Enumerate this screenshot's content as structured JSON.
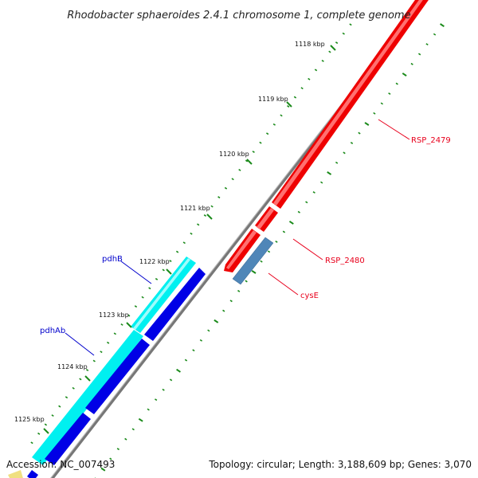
{
  "title": "Rhodobacter sphaeroides 2.4.1 chromosome 1, complete genome",
  "footer": {
    "accession": "Accession: NC_007493",
    "summary": "Topology: circular; Length: 3,188,609 bp; Genes: 3,070"
  },
  "ticks": [
    {
      "label": "1118 kbp"
    },
    {
      "label": "1119 kbp"
    },
    {
      "label": "1120 kbp"
    },
    {
      "label": "1121 kbp"
    },
    {
      "label": "1122 kbp"
    },
    {
      "label": "1123 kbp"
    },
    {
      "label": "1124 kbp"
    },
    {
      "label": "1125 kbp"
    }
  ],
  "genes": [
    {
      "name": "RSP_2479",
      "color": "#e8001c"
    },
    {
      "name": "RSP_2480",
      "color": "#e8001c"
    },
    {
      "name": "cysE",
      "color": "#e8001c"
    },
    {
      "name": "pdhB",
      "color": "#0000cc"
    },
    {
      "name": "pdhAb",
      "color": "#0000cc"
    }
  ],
  "colors": {
    "forward_cds": "#ff0000",
    "reverse_cds": "#0000ee",
    "cyan_feature": "#00ffff",
    "steelblue_feature": "#4682b4",
    "backbone": "#808080",
    "tick_marks": "#1a8a1a"
  }
}
